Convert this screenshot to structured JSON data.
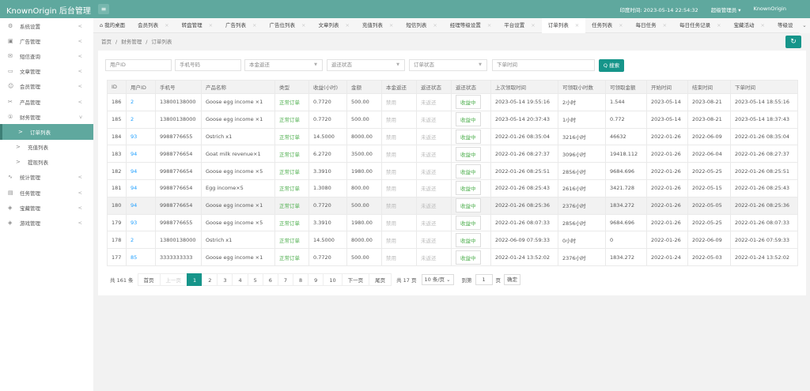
{
  "header": {
    "logo": "KnownOrigin 后台管理",
    "time_label": "印度时间: 2023-05-14 22:54:32",
    "user": "超级管理员 ▾",
    "site": "KnownOrigin",
    "menu_icon": "hamburger-icon"
  },
  "sidebar": {
    "items": [
      {
        "label": "系统设置",
        "icon": "⚙",
        "arrow": "<"
      },
      {
        "label": "广告管理",
        "icon": "▣",
        "arrow": "<"
      },
      {
        "label": "短信查询",
        "icon": "✉",
        "arrow": "<"
      },
      {
        "label": "文章管理",
        "icon": "▭",
        "arrow": "<"
      },
      {
        "label": "会员管理",
        "icon": "☺",
        "arrow": "<"
      },
      {
        "label": "产品管理",
        "icon": "✂",
        "arrow": "<"
      },
      {
        "label": "财务管理",
        "icon": "①",
        "arrow": "v"
      }
    ],
    "sub": [
      {
        "label": "订单列表",
        "active": true
      },
      {
        "label": "充值列表"
      },
      {
        "label": "提现列表"
      }
    ],
    "items2": [
      {
        "label": "统计管理",
        "icon": "∿",
        "arrow": "<"
      },
      {
        "label": "任务管理",
        "icon": "▤",
        "arrow": "<"
      },
      {
        "label": "宝藏管理",
        "icon": "◈",
        "arrow": "<"
      },
      {
        "label": "游戏管理",
        "icon": "◈",
        "arrow": "<"
      }
    ]
  },
  "tabs": [
    "我的桌面",
    "会员列表",
    "转盘管理",
    "广告列表",
    "广告位列表",
    "文章列表",
    "充值列表",
    "短信列表",
    "经理等级设置",
    "平台设置",
    "订单列表",
    "任务列表",
    "每日任务",
    "每日任务记录",
    "宝藏活动",
    "等级设"
  ],
  "active_tab": "订单列表",
  "breadcrumb": [
    "首页",
    "/",
    "财务管理",
    "/",
    "订单列表"
  ],
  "filters": {
    "user_id": "用户ID",
    "phone": "手机号码",
    "principal": "本金返还",
    "refund_status": "返还状态",
    "order_status": "订单状态",
    "order_time": "下单时间",
    "search": "Q 搜索"
  },
  "table": {
    "headers": [
      "ID",
      "用户ID",
      "手机号",
      "产品名称",
      "类型",
      "收益(小时)",
      "金额",
      "本金返还",
      "返还状态",
      "返还状态",
      "上次领取时间",
      "可领取小时数",
      "可领取金额",
      "开始时间",
      "结束时间",
      "下单时间"
    ],
    "rows": [
      [
        "186",
        "2",
        "13800138000",
        "Goose egg income ×1",
        "正常订单",
        "0.7720",
        "500.00",
        "禁用",
        "未返还",
        "收益中",
        "2023-05-14 19:55:16",
        "2小时",
        "1.544",
        "2023-05-14",
        "2023-08-21",
        "2023-05-14 18:55:16"
      ],
      [
        "185",
        "2",
        "13800138000",
        "Goose egg income ×1",
        "正常订单",
        "0.7720",
        "500.00",
        "禁用",
        "未返还",
        "收益中",
        "2023-05-14 20:37:43",
        "1小时",
        "0.772",
        "2023-05-14",
        "2023-08-21",
        "2023-05-14 18:37:43"
      ],
      [
        "184",
        "93",
        "9988776655",
        "Ostrich x1",
        "正常订单",
        "14.5000",
        "8000.00",
        "禁用",
        "未返还",
        "收益中",
        "2022-01-26 08:35:04",
        "3216小时",
        "46632",
        "2022-01-26",
        "2022-06-09",
        "2022-01-26 08:35:04"
      ],
      [
        "183",
        "94",
        "9988776654",
        "Goat milk revenue×1",
        "正常订单",
        "6.2720",
        "3500.00",
        "禁用",
        "未返还",
        "收益中",
        "2022-01-26 08:27:37",
        "3096小时",
        "19418.112",
        "2022-01-26",
        "2022-06-04",
        "2022-01-26 08:27:37"
      ],
      [
        "182",
        "94",
        "9988776654",
        "Goose egg income ×5",
        "正常订单",
        "3.3910",
        "1980.00",
        "禁用",
        "未返还",
        "收益中",
        "2022-01-26 08:25:51",
        "2856小时",
        "9684.696",
        "2022-01-26",
        "2022-05-25",
        "2022-01-26 08:25:51"
      ],
      [
        "181",
        "94",
        "9988776654",
        "Egg income×5",
        "正常订单",
        "1.3080",
        "800.00",
        "禁用",
        "未返还",
        "收益中",
        "2022-01-26 08:25:43",
        "2616小时",
        "3421.728",
        "2022-01-26",
        "2022-05-15",
        "2022-01-26 08:25:43"
      ],
      [
        "180",
        "94",
        "9988776654",
        "Goose egg income ×1",
        "正常订单",
        "0.7720",
        "500.00",
        "禁用",
        "未返还",
        "收益中",
        "2022-01-26 08:25:36",
        "2376小时",
        "1834.272",
        "2022-01-26",
        "2022-05-05",
        "2022-01-26 08:25:36"
      ],
      [
        "179",
        "93",
        "9988776655",
        "Goose egg income ×5",
        "正常订单",
        "3.3910",
        "1980.00",
        "禁用",
        "未返还",
        "收益中",
        "2022-01-26 08:07:33",
        "2856小时",
        "9684.696",
        "2022-01-26",
        "2022-05-25",
        "2022-01-26 08:07:33"
      ],
      [
        "178",
        "2",
        "13800138000",
        "Ostrich x1",
        "正常订单",
        "14.5000",
        "8000.00",
        "禁用",
        "未返还",
        "收益中",
        "2022-06-09 07:59:33",
        "0小时",
        "0",
        "2022-01-26",
        "2022-06-09",
        "2022-01-26 07:59:33"
      ],
      [
        "177",
        "85",
        "3333333333",
        "Goose egg income ×1",
        "正常订单",
        "0.7720",
        "500.00",
        "禁用",
        "未返还",
        "收益中",
        "2022-01-24 13:52:02",
        "2376小时",
        "1834.272",
        "2022-01-24",
        "2022-05-03",
        "2022-01-24 13:52:02"
      ]
    ]
  },
  "pagination": {
    "total": "共 161 条",
    "first": "首页",
    "prev": "上一页",
    "pages": [
      "1",
      "2",
      "3",
      "4",
      "5",
      "6",
      "7",
      "8",
      "9",
      "10"
    ],
    "current": "1",
    "next": "下一页",
    "last": "尾页",
    "page_count": "共 17 页",
    "per_page": "10 条/页 ⌄",
    "goto": "到第",
    "goto_value": "1",
    "page_unit": "页",
    "confirm": "确定"
  },
  "colors": {
    "brand": "#5fa89e",
    "button": "#16958a",
    "link": "#1e9fff",
    "success": "#4cae4c"
  }
}
